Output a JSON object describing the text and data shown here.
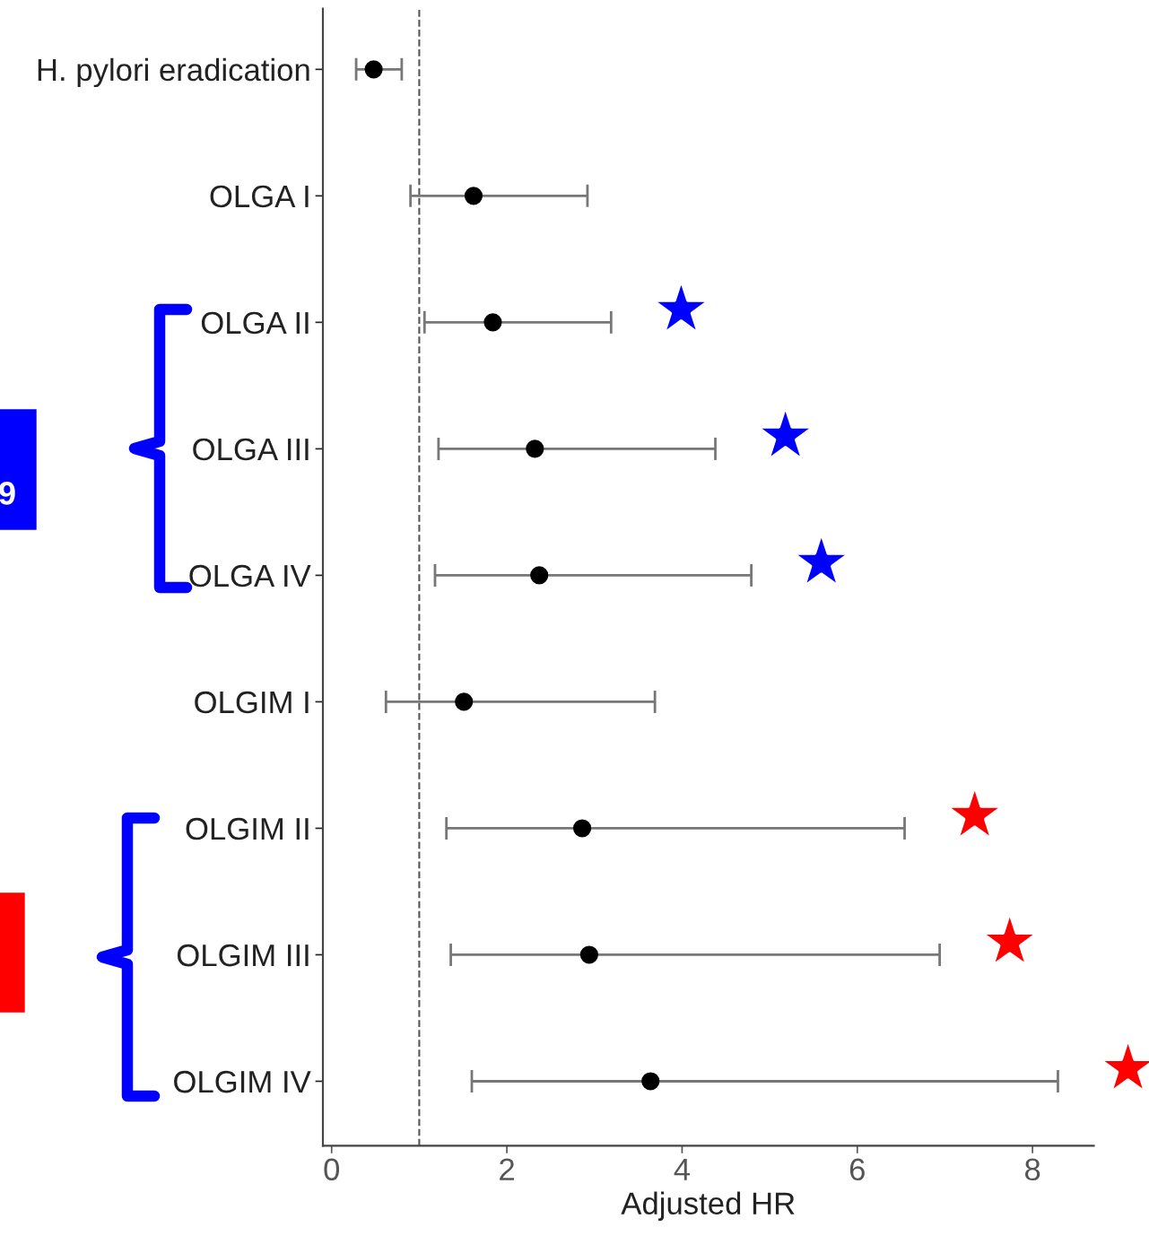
{
  "chart_data": {
    "type": "scatter",
    "orientation": "horizontal",
    "categories": [
      "H. pylori eradication",
      "OLGA I",
      "OLGA II",
      "OLGA III",
      "OLGA IV",
      "OLGIM I",
      "OLGIM II",
      "OLGIM III",
      "OLGIM IV"
    ],
    "color": "#000000",
    "values": [
      0.48,
      1.62,
      1.84,
      2.32,
      2.37,
      1.51,
      2.86,
      2.94,
      3.64
    ],
    "errors": [
      [
        0.28,
        0.8
      ],
      [
        0.9,
        2.92
      ],
      [
        1.06,
        3.19
      ],
      [
        1.22,
        4.38
      ],
      [
        1.18,
        4.79
      ],
      [
        0.62,
        3.69
      ],
      [
        1.31,
        6.54
      ],
      [
        1.36,
        6.94
      ],
      [
        1.6,
        8.29
      ]
    ],
    "marker": "circle",
    "xlim": [
      -0.1,
      8.7
    ],
    "xticks": [
      0,
      2,
      4,
      6,
      8
    ],
    "xlabel": "Adjusted HR",
    "ref_lines": [
      {
        "axis": "x",
        "value": 1,
        "line_style": "dashed",
        "color": "#555555"
      }
    ],
    "annotations": [
      "9"
    ],
    "grid": false,
    "legend": false
  }
}
